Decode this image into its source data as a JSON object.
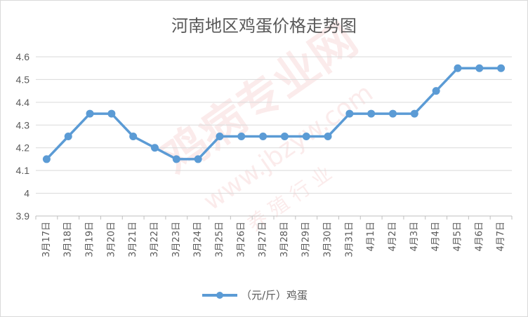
{
  "chart_data": {
    "type": "line",
    "title": "河南地区鸡蛋价格走势图",
    "xlabel": "",
    "ylabel": "",
    "ylim": [
      3.9,
      4.6
    ],
    "yticks": [
      "3.9",
      "4",
      "4.1",
      "4.2",
      "4.3",
      "4.4",
      "4.5",
      "4.6"
    ],
    "categories": [
      "3月17日",
      "3月18日",
      "3月19日",
      "3月20日",
      "3月21日",
      "3月22日",
      "3月23日",
      "3月24日",
      "3月25日",
      "3月26日",
      "3月27日",
      "3月28日",
      "3月29日",
      "3月30日",
      "3月31日",
      "4月1日",
      "4月2日",
      "4月3日",
      "4月4日",
      "4月5日",
      "4月6日",
      "4月7日"
    ],
    "series": [
      {
        "name": "（元/斤）鸡蛋",
        "color": "#5b9bd5",
        "values": [
          4.15,
          4.25,
          4.35,
          4.35,
          4.25,
          4.2,
          4.15,
          4.15,
          4.25,
          4.25,
          4.25,
          4.25,
          4.25,
          4.25,
          4.35,
          4.35,
          4.35,
          4.35,
          4.45,
          4.55,
          4.55,
          4.55
        ]
      }
    ],
    "grid": true,
    "legend": "bottom"
  },
  "watermark": {
    "line1": "鸡病专业网",
    "line2": "www.jbzyw.com",
    "line3": "养 殖 行 业"
  }
}
